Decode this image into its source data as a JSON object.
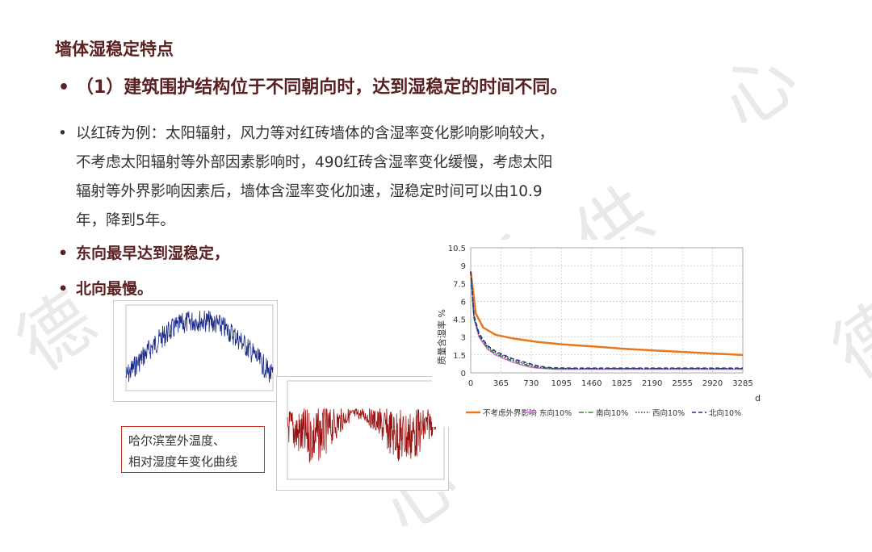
{
  "title": "墙体湿稳定特点",
  "bullet1": "（1）建筑围护结构位于不同朝向时，达到湿稳定的时间不同。",
  "bullet2_lines": [
    "以红砖为例：太阳辐射，风力等对红砖墙体的含湿率变化影响影响较大，",
    "不考虑太阳辐射等外部因素影响时，490红砖含湿率变化缓慢，考虑太阳",
    "辐射等外界影响因素后，墙体含湿率变化加速，湿稳定时间可以由10.9",
    "年，降到5年。"
  ],
  "bullet3": "东向最早达到湿稳定，",
  "bullet4": "北向最慢。",
  "bullet_symbol": "•",
  "caption_lines": [
    "哈尔滨室外温度、",
    "相对湿度年变化曲线"
  ],
  "watermark": [
    "德",
    "手",
    "心",
    "供",
    "德",
    "心"
  ],
  "chart_data": {
    "type": "line",
    "ylabel": "质量含湿率 %",
    "xunit": "d",
    "x_ticks": [
      "0",
      "365",
      "730",
      "1095",
      "1460",
      "1825",
      "2190",
      "2555",
      "2920",
      "3285"
    ],
    "y_ticks": [
      "0",
      "1.5",
      "3",
      "4.5",
      "6",
      "7.5",
      "9",
      "10.5"
    ],
    "ylim": [
      0,
      10.5
    ],
    "xlim": [
      0,
      3285
    ],
    "grid": true,
    "legend_position": "bottom",
    "series": [
      {
        "name": "不考虑外界影响",
        "color": "#e8781e",
        "dash": "solid",
        "x": [
          0,
          60,
          150,
          300,
          500,
          800,
          1100,
          1500,
          1900,
          2300,
          2700,
          3000,
          3285
        ],
        "values": [
          8.5,
          5.0,
          3.8,
          3.2,
          2.9,
          2.6,
          2.4,
          2.2,
          2.0,
          1.85,
          1.7,
          1.6,
          1.5
        ]
      },
      {
        "name": "东向10%",
        "color": "#d970d9",
        "dash": "solid",
        "x": [
          0,
          40,
          100,
          200,
          300,
          400,
          500,
          600,
          700,
          800,
          900,
          1000,
          1200,
          1600,
          2000,
          2500,
          3000,
          3285
        ],
        "values": [
          8.5,
          4.5,
          3.0,
          2.0,
          1.5,
          1.2,
          0.9,
          0.7,
          0.5,
          0.4,
          0.35,
          0.3,
          0.3,
          0.3,
          0.3,
          0.3,
          0.3,
          0.3
        ]
      },
      {
        "name": "南向10%",
        "color": "#2e8b2e",
        "dash": "dashdot",
        "x": [
          0,
          40,
          100,
          200,
          300,
          400,
          500,
          600,
          700,
          800,
          900,
          1000,
          1200,
          1600,
          2000,
          2500,
          3000,
          3285
        ],
        "values": [
          8.5,
          4.6,
          3.1,
          2.1,
          1.6,
          1.3,
          1.0,
          0.8,
          0.6,
          0.45,
          0.4,
          0.35,
          0.35,
          0.35,
          0.35,
          0.35,
          0.35,
          0.35
        ]
      },
      {
        "name": "西向10%",
        "color": "#333333",
        "dash": "dotted",
        "x": [
          0,
          40,
          100,
          200,
          300,
          400,
          500,
          600,
          700,
          800,
          900,
          1000,
          1200,
          1600,
          2000,
          2500,
          3000,
          3285
        ],
        "values": [
          8.5,
          4.7,
          3.2,
          2.2,
          1.7,
          1.4,
          1.1,
          0.9,
          0.7,
          0.5,
          0.42,
          0.38,
          0.36,
          0.36,
          0.36,
          0.36,
          0.36,
          0.36
        ]
      },
      {
        "name": "北向10%",
        "color": "#1f2f9a",
        "dash": "dashed",
        "x": [
          0,
          40,
          100,
          200,
          300,
          400,
          500,
          600,
          700,
          800,
          900,
          1000,
          1200,
          1600,
          2000,
          2500,
          3000,
          3285
        ],
        "values": [
          8.5,
          4.8,
          3.3,
          2.3,
          1.8,
          1.5,
          1.2,
          1.0,
          0.8,
          0.6,
          0.48,
          0.42,
          0.4,
          0.4,
          0.4,
          0.4,
          0.4,
          0.4
        ]
      }
    ]
  }
}
